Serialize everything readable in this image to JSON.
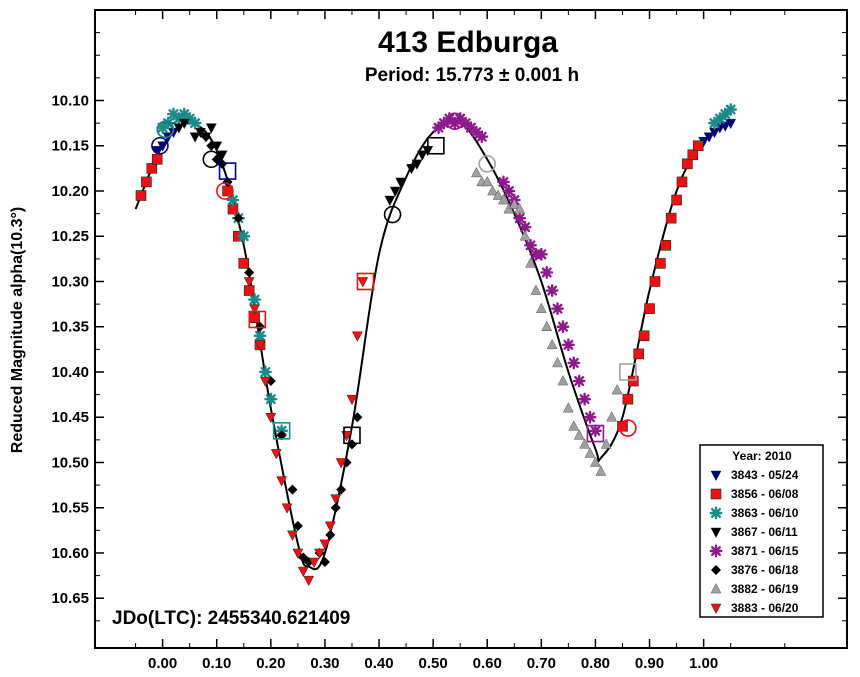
{
  "chart_data": {
    "type": "scatter",
    "title": "413 Edburga",
    "subtitle": "Period: 15.773 ± 0.001 h",
    "ylabel": "Reduced Magnitude alpha(10.3°)",
    "xlabel": "",
    "annotation": "JDo(LTC): 2455340.621409",
    "xlim": [
      -0.125,
      1.265
    ],
    "ylim": [
      10.0,
      10.705
    ],
    "y_inverted": true,
    "x_ticks": [
      "0.00",
      "0.10",
      "0.20",
      "0.30",
      "0.40",
      "0.50",
      "0.60",
      "0.70",
      "0.80",
      "0.90",
      "1.00"
    ],
    "y_ticks": [
      "10.10",
      "10.15",
      "10.20",
      "10.25",
      "10.30",
      "10.35",
      "10.40",
      "10.45",
      "10.50",
      "10.55",
      "10.60",
      "10.65"
    ],
    "legend": {
      "title": "Year: 2010",
      "placement": "bottom-right"
    },
    "fit_curve": {
      "x": [
        -0.05,
        0.0,
        0.05,
        0.1,
        0.15,
        0.2,
        0.25,
        0.27,
        0.3,
        0.35,
        0.4,
        0.45,
        0.5,
        0.55,
        0.6,
        0.65,
        0.7,
        0.75,
        0.8,
        0.81,
        0.85,
        0.9,
        0.95,
        1.0,
        1.05
      ],
      "y": [
        10.22,
        10.15,
        10.125,
        10.155,
        10.26,
        10.44,
        10.59,
        10.615,
        10.6,
        10.46,
        10.27,
        10.185,
        10.135,
        10.125,
        10.165,
        10.225,
        10.3,
        10.4,
        10.485,
        10.495,
        10.45,
        10.31,
        10.2,
        10.145,
        10.125
      ]
    },
    "series": [
      {
        "name": "3843 - 05/24",
        "color": "#000080",
        "marker": "triangle-down",
        "x": [
          -0.01,
          0.0,
          0.01,
          0.02,
          1.0,
          1.01,
          1.02,
          1.03,
          1.04,
          1.05
        ],
        "y": [
          10.155,
          10.15,
          10.14,
          10.135,
          10.145,
          10.14,
          10.135,
          10.13,
          10.128,
          10.125
        ]
      },
      {
        "name": "3856 - 06/08",
        "color": "#ee1111",
        "marker": "square",
        "x": [
          -0.04,
          -0.03,
          -0.02,
          -0.01,
          0.12,
          0.13,
          0.14,
          0.15,
          0.16,
          0.17,
          0.18,
          0.85,
          0.86,
          0.87,
          0.88,
          0.89,
          0.9,
          0.91,
          0.92,
          0.93,
          0.94,
          0.95,
          0.96,
          0.97,
          0.98,
          0.99
        ],
        "y": [
          10.205,
          10.19,
          10.175,
          10.165,
          10.2,
          10.22,
          10.25,
          10.28,
          10.31,
          10.34,
          10.37,
          10.46,
          10.43,
          10.41,
          10.38,
          10.36,
          10.33,
          10.3,
          10.28,
          10.26,
          10.23,
          10.21,
          10.19,
          10.17,
          10.16,
          10.15
        ]
      },
      {
        "name": "3863 - 06/10",
        "color": "#1a8a8a",
        "marker": "asterisk",
        "x": [
          0.0,
          0.01,
          0.02,
          0.03,
          0.04,
          0.05,
          0.06,
          0.13,
          0.14,
          0.15,
          0.17,
          0.18,
          0.19,
          0.2,
          0.22,
          1.02,
          1.03,
          1.04,
          1.05
        ],
        "y": [
          10.13,
          10.125,
          10.115,
          10.12,
          10.115,
          10.12,
          10.125,
          10.21,
          10.23,
          10.25,
          10.32,
          10.36,
          10.4,
          10.43,
          10.465,
          10.125,
          10.12,
          10.115,
          10.11
        ]
      },
      {
        "name": "3867 - 06/11",
        "color": "#000000",
        "marker": "triangle-down",
        "x": [
          0.03,
          0.04,
          0.06,
          0.07,
          0.08,
          0.09,
          0.1,
          0.11,
          0.42,
          0.43,
          0.44,
          0.46,
          0.47,
          0.48,
          0.49
        ],
        "y": [
          10.13,
          10.125,
          10.14,
          10.135,
          10.14,
          10.13,
          10.15,
          10.16,
          10.21,
          10.2,
          10.19,
          10.175,
          10.17,
          10.16,
          10.155
        ]
      },
      {
        "name": "3871 - 06/15",
        "color": "#8e1a8e",
        "marker": "asterisk",
        "x": [
          0.51,
          0.52,
          0.53,
          0.54,
          0.55,
          0.56,
          0.57,
          0.58,
          0.59,
          0.63,
          0.64,
          0.65,
          0.66,
          0.67,
          0.68,
          0.69,
          0.7,
          0.71,
          0.72,
          0.73,
          0.74,
          0.75,
          0.76,
          0.77,
          0.78,
          0.79,
          0.8
        ],
        "y": [
          10.13,
          10.125,
          10.12,
          10.125,
          10.12,
          10.125,
          10.13,
          10.135,
          10.14,
          10.19,
          10.2,
          10.21,
          10.23,
          10.24,
          10.26,
          10.27,
          10.27,
          10.29,
          10.31,
          10.33,
          10.35,
          10.37,
          10.39,
          10.41,
          10.43,
          10.45,
          10.465
        ]
      },
      {
        "name": "3876 - 06/18",
        "color": "#000000",
        "marker": "diamond",
        "x": [
          0.08,
          0.09,
          0.1,
          0.11,
          0.12,
          0.14,
          0.16,
          0.18,
          0.2,
          0.22,
          0.24,
          0.25,
          0.26,
          0.27,
          0.29,
          0.3,
          0.31,
          0.32,
          0.33,
          0.34,
          0.35,
          0.36
        ],
        "y": [
          10.14,
          10.15,
          10.165,
          10.17,
          10.19,
          10.23,
          10.29,
          10.35,
          10.41,
          10.47,
          10.53,
          10.57,
          10.605,
          10.61,
          10.6,
          10.61,
          10.58,
          10.55,
          10.53,
          10.5,
          10.48,
          10.45
        ]
      },
      {
        "name": "3882 - 06/19",
        "color": "#a0a0a0",
        "marker": "triangle-up",
        "x": [
          0.58,
          0.59,
          0.6,
          0.61,
          0.62,
          0.63,
          0.64,
          0.65,
          0.66,
          0.67,
          0.68,
          0.69,
          0.7,
          0.71,
          0.72,
          0.73,
          0.74,
          0.75,
          0.76,
          0.77,
          0.78,
          0.79,
          0.8,
          0.81,
          0.82,
          0.83,
          0.84
        ],
        "y": [
          10.18,
          10.19,
          10.19,
          10.2,
          10.205,
          10.21,
          10.22,
          10.215,
          10.22,
          10.25,
          10.28,
          10.31,
          10.33,
          10.35,
          10.37,
          10.39,
          10.41,
          10.44,
          10.46,
          10.47,
          10.48,
          10.49,
          10.5,
          10.51,
          10.48,
          10.45,
          10.42
        ]
      },
      {
        "name": "3883 - 06/20",
        "color": "#ee1111",
        "marker": "triangle-down",
        "x": [
          0.16,
          0.17,
          0.18,
          0.19,
          0.2,
          0.21,
          0.22,
          0.23,
          0.24,
          0.25,
          0.26,
          0.27,
          0.28,
          0.29,
          0.3,
          0.31,
          0.32,
          0.33,
          0.34,
          0.35,
          0.36,
          0.37
        ],
        "y": [
          10.3,
          10.33,
          10.37,
          10.41,
          10.45,
          10.49,
          10.52,
          10.55,
          10.58,
          10.6,
          10.62,
          10.63,
          10.61,
          10.6,
          10.59,
          10.57,
          10.54,
          10.5,
          10.47,
          10.43,
          10.36,
          10.3
        ]
      }
    ],
    "open_markers": [
      {
        "marker": "circle",
        "color": "#000080",
        "x": [
          -0.005,
          0.005
        ],
        "y": [
          10.15,
          10.132
        ]
      },
      {
        "marker": "circle",
        "color": "#1a8a8a",
        "x": [
          0.005
        ],
        "y": [
          10.132
        ]
      },
      {
        "marker": "circle",
        "color": "#000000",
        "x": [
          0.09,
          0.425
        ],
        "y": [
          10.165,
          10.226
        ]
      },
      {
        "marker": "circle",
        "color": "#ee1111",
        "x": [
          0.115,
          0.86
        ],
        "y": [
          10.2,
          10.462
        ]
      },
      {
        "marker": "circle",
        "color": "#8e1a8e",
        "x": [
          0.54
        ],
        "y": [
          10.123
        ]
      },
      {
        "marker": "circle",
        "color": "#a0a0a0",
        "x": [
          0.6
        ],
        "y": [
          10.17
        ]
      },
      {
        "marker": "square",
        "color": "#000080",
        "x": [
          0.12
        ],
        "y": [
          10.178
        ]
      },
      {
        "marker": "square",
        "color": "#ee1111",
        "x": [
          0.175,
          0.375
        ],
        "y": [
          10.342,
          10.3
        ]
      },
      {
        "marker": "square",
        "color": "#1a8a8a",
        "x": [
          0.22
        ],
        "y": [
          10.465
        ]
      },
      {
        "marker": "square",
        "color": "#000000",
        "x": [
          0.35,
          0.505
        ],
        "y": [
          10.47,
          10.15
        ]
      },
      {
        "marker": "square",
        "color": "#8e1a8e",
        "x": [
          0.8
        ],
        "y": [
          10.468
        ]
      },
      {
        "marker": "square",
        "color": "#a0a0a0",
        "x": [
          0.86
        ],
        "y": [
          10.4
        ]
      }
    ]
  }
}
